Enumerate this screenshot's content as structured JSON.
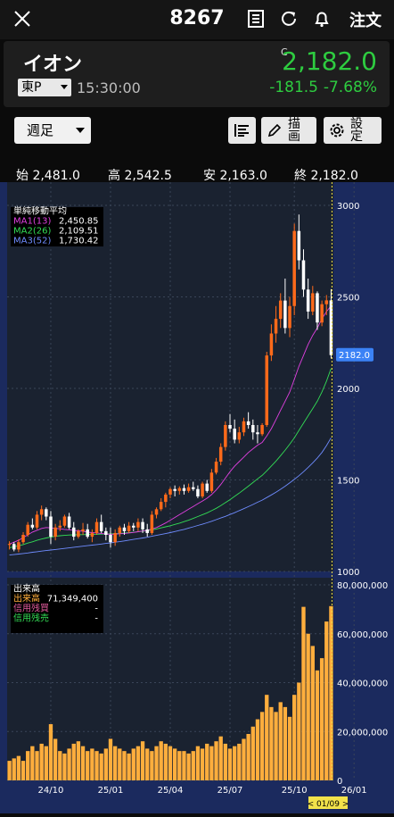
{
  "header": {
    "title": "8267",
    "order_label": "注文"
  },
  "icons": [
    "close-icon",
    "document-icon",
    "refresh-icon",
    "bell-icon",
    "bars-icon",
    "pencil-icon",
    "gear-icon"
  ],
  "quote": {
    "name": "イオン",
    "market": "東P",
    "time": "15:30:00",
    "c_mark": "C",
    "price": "2,182.0",
    "change": "-181.5",
    "change_pct": "-7.68%",
    "color_up": "#2ecc40"
  },
  "controls": {
    "period": "週足",
    "draw_label": "描画",
    "settings_label": "設定"
  },
  "ohlc": {
    "open_label": "始",
    "open": "2,481.0",
    "high_label": "高",
    "high": "2,542.5",
    "low_label": "安",
    "low": "2,163.0",
    "close_label": "終",
    "close": "2,182.0"
  },
  "ma_legend": {
    "title": "単純移動平均",
    "items": [
      {
        "label": "MA1(13)",
        "value": "2,450.85",
        "color": "#e040e0"
      },
      {
        "label": "MA2(26)",
        "value": "2,109.51",
        "color": "#33dd55"
      },
      {
        "label": "MA3(52)",
        "value": "1,730.42",
        "color": "#6f8cff"
      }
    ]
  },
  "vol_legend": {
    "title": "出来高",
    "items": [
      {
        "label": "出来高",
        "value": "71,349,400",
        "color": "#ffae3d"
      },
      {
        "label": "信用残買",
        "value": "-",
        "color": "#e05a9c"
      },
      {
        "label": "信用残売",
        "value": "-",
        "color": "#33dd55"
      }
    ]
  },
  "chart_data": {
    "type": "candlestick",
    "price_axis": [
      "3000",
      "2500",
      "2000",
      "1500",
      "1000"
    ],
    "price_range": [
      1000,
      3000
    ],
    "volume_axis": [
      "80,000,000",
      "60,000,000",
      "40,000,000",
      "20,000,000",
      "0"
    ],
    "volume_range": [
      0,
      80000000
    ],
    "x_ticks": [
      {
        "label": "24/10",
        "i": 9
      },
      {
        "label": "25/01",
        "i": 22
      },
      {
        "label": "25/04",
        "i": 35
      },
      {
        "label": "25/07",
        "i": 48
      },
      {
        "label": "25/10",
        "i": 62
      },
      {
        "label": "26/01",
        "i": 75
      }
    ],
    "last_price_label": "2182.0",
    "last_date_label": "< 01/09 >",
    "colors": {
      "up": "#ff6a1a",
      "down": "#ffffff",
      "volume": "#ffae3d",
      "ma1": "#e040e0",
      "ma2": "#33dd55",
      "ma3": "#6f8cff"
    },
    "candles": [
      [
        1145,
        1165,
        1120,
        1150
      ],
      [
        1150,
        1160,
        1110,
        1120
      ],
      [
        1120,
        1175,
        1105,
        1160
      ],
      [
        1160,
        1215,
        1150,
        1200
      ],
      [
        1200,
        1270,
        1190,
        1255
      ],
      [
        1255,
        1290,
        1230,
        1240
      ],
      [
        1240,
        1330,
        1230,
        1310
      ],
      [
        1310,
        1360,
        1280,
        1340
      ],
      [
        1340,
        1350,
        1280,
        1300
      ],
      [
        1300,
        1330,
        1150,
        1190
      ],
      [
        1190,
        1260,
        1170,
        1240
      ],
      [
        1240,
        1280,
        1220,
        1250
      ],
      [
        1250,
        1310,
        1240,
        1300
      ],
      [
        1300,
        1320,
        1230,
        1240
      ],
      [
        1240,
        1270,
        1170,
        1190
      ],
      [
        1190,
        1230,
        1180,
        1220
      ],
      [
        1220,
        1265,
        1200,
        1230
      ],
      [
        1230,
        1260,
        1180,
        1190
      ],
      [
        1190,
        1230,
        1160,
        1210
      ],
      [
        1210,
        1290,
        1200,
        1270
      ],
      [
        1270,
        1310,
        1210,
        1220
      ],
      [
        1220,
        1240,
        1170,
        1200
      ],
      [
        1200,
        1240,
        1130,
        1160
      ],
      [
        1160,
        1230,
        1140,
        1210
      ],
      [
        1210,
        1250,
        1190,
        1240
      ],
      [
        1240,
        1260,
        1200,
        1220
      ],
      [
        1220,
        1270,
        1210,
        1250
      ],
      [
        1250,
        1265,
        1220,
        1240
      ],
      [
        1240,
        1290,
        1220,
        1270
      ],
      [
        1270,
        1290,
        1210,
        1230
      ],
      [
        1230,
        1260,
        1190,
        1210
      ],
      [
        1210,
        1330,
        1200,
        1310
      ],
      [
        1310,
        1350,
        1290,
        1340
      ],
      [
        1340,
        1400,
        1330,
        1380
      ],
      [
        1380,
        1430,
        1350,
        1420
      ],
      [
        1420,
        1460,
        1400,
        1450
      ],
      [
        1450,
        1470,
        1410,
        1440
      ],
      [
        1440,
        1465,
        1420,
        1455
      ],
      [
        1455,
        1475,
        1420,
        1440
      ],
      [
        1440,
        1480,
        1430,
        1460
      ],
      [
        1460,
        1490,
        1440,
        1450
      ],
      [
        1450,
        1470,
        1400,
        1410
      ],
      [
        1410,
        1490,
        1400,
        1480
      ],
      [
        1480,
        1500,
        1430,
        1440
      ],
      [
        1440,
        1560,
        1430,
        1540
      ],
      [
        1540,
        1620,
        1530,
        1600
      ],
      [
        1600,
        1700,
        1580,
        1680
      ],
      [
        1680,
        1820,
        1660,
        1800
      ],
      [
        1800,
        1860,
        1760,
        1780
      ],
      [
        1780,
        1830,
        1700,
        1720
      ],
      [
        1720,
        1790,
        1700,
        1760
      ],
      [
        1760,
        1840,
        1740,
        1820
      ],
      [
        1820,
        1870,
        1780,
        1800
      ],
      [
        1800,
        1830,
        1720,
        1760
      ],
      [
        1760,
        1800,
        1700,
        1750
      ],
      [
        1750,
        1810,
        1740,
        1800
      ],
      [
        1800,
        2200,
        1790,
        2180
      ],
      [
        2180,
        2350,
        2150,
        2300
      ],
      [
        2300,
        2450,
        2250,
        2380
      ],
      [
        2380,
        2520,
        2330,
        2480
      ],
      [
        2480,
        2600,
        2300,
        2330
      ],
      [
        2330,
        2500,
        2280,
        2450
      ],
      [
        2450,
        2900,
        2400,
        2860
      ],
      [
        2860,
        2950,
        2650,
        2700
      ],
      [
        2700,
        2760,
        2500,
        2540
      ],
      [
        2540,
        2600,
        2380,
        2420
      ],
      [
        2420,
        2560,
        2400,
        2520
      ],
      [
        2520,
        2530,
        2320,
        2360
      ],
      [
        2360,
        2480,
        2340,
        2460
      ],
      [
        2460,
        2510,
        2400,
        2481
      ],
      [
        2481,
        2542.5,
        2163,
        2182
      ]
    ],
    "volumes": [
      8,
      9,
      10,
      8,
      12,
      14,
      12,
      15,
      14,
      23,
      17,
      12,
      11,
      13,
      15,
      16,
      14,
      12,
      13,
      12,
      11,
      13,
      17,
      14,
      13,
      12,
      11,
      13,
      14,
      16,
      13,
      12,
      14,
      16,
      15,
      14,
      13,
      12,
      12,
      11,
      12,
      14,
      13,
      15,
      14,
      16,
      18,
      15,
      13,
      14,
      15,
      17,
      19,
      22,
      25,
      28,
      35,
      30,
      28,
      32,
      30,
      26,
      35,
      40,
      71,
      60,
      55,
      45,
      50,
      65,
      71.3
    ],
    "ma1": [
      1150,
      1160,
      1170,
      1185,
      1200,
      1215,
      1225,
      1235,
      1240,
      1238,
      1235,
      1233,
      1230,
      1228,
      1225,
      1222,
      1220,
      1215,
      1212,
      1210,
      1208,
      1205,
      1203,
      1204,
      1206,
      1208,
      1210,
      1213,
      1217,
      1221,
      1225,
      1232,
      1240,
      1252,
      1265,
      1280,
      1295,
      1310,
      1325,
      1340,
      1355,
      1370,
      1385,
      1400,
      1420,
      1445,
      1475,
      1510,
      1545,
      1575,
      1600,
      1625,
      1650,
      1670,
      1690,
      1705,
      1740,
      1780,
      1830,
      1880,
      1930,
      1980,
      2050,
      2120,
      2180,
      2240,
      2290,
      2330,
      2380,
      2420,
      2450.85
    ],
    "ma2": [
      1130,
      1135,
      1140,
      1147,
      1155,
      1162,
      1170,
      1177,
      1183,
      1188,
      1192,
      1195,
      1197,
      1199,
      1200,
      1201,
      1201,
      1202,
      1202,
      1203,
      1204,
      1205,
      1206,
      1207,
      1208,
      1210,
      1212,
      1214,
      1217,
      1220,
      1223,
      1227,
      1232,
      1238,
      1244,
      1250,
      1257,
      1264,
      1272,
      1280,
      1290,
      1300,
      1310,
      1320,
      1332,
      1345,
      1360,
      1376,
      1392,
      1410,
      1428,
      1447,
      1466,
      1486,
      1506,
      1525,
      1550,
      1576,
      1603,
      1632,
      1663,
      1695,
      1730,
      1770,
      1810,
      1850,
      1890,
      1930,
      1980,
      2040,
      2109.51
    ],
    "ma3": [
      1090,
      1092,
      1095,
      1098,
      1101,
      1105,
      1108,
      1111,
      1114,
      1117,
      1120,
      1123,
      1126,
      1129,
      1132,
      1135,
      1138,
      1141,
      1144,
      1147,
      1150,
      1153,
      1156,
      1160,
      1163,
      1167,
      1171,
      1175,
      1179,
      1183,
      1187,
      1192,
      1197,
      1202,
      1207,
      1212,
      1218,
      1224,
      1230,
      1237,
      1244,
      1251,
      1258,
      1266,
      1274,
      1283,
      1292,
      1301,
      1311,
      1321,
      1332,
      1343,
      1354,
      1366,
      1378,
      1390,
      1404,
      1418,
      1433,
      1449,
      1466,
      1484,
      1503,
      1523,
      1545,
      1568,
      1593,
      1620,
      1650,
      1688,
      1730.42
    ]
  }
}
